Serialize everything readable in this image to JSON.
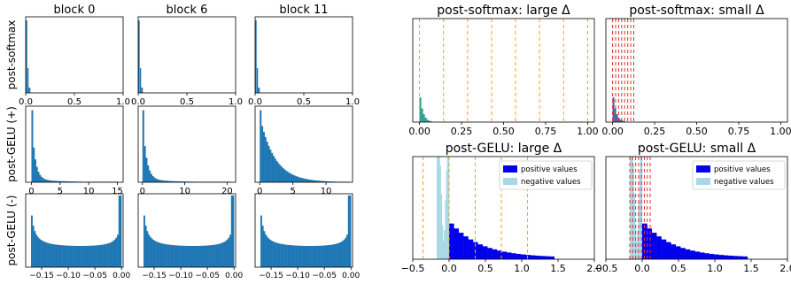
{
  "colors": {
    "hist": "#1f77b4",
    "positive": "#0000ee",
    "negative": "#a8d8e6",
    "orange_lines": "#ff9f1c",
    "red_lines": "#e03030"
  },
  "chart_data": [
    {
      "id": "grid",
      "type": "bar",
      "column_titles": [
        "block 0",
        "block 6",
        "block 11"
      ],
      "row_labels": [
        "post-softmax",
        "post-GELU (+)",
        "post-GELU (-)"
      ],
      "panels": [
        {
          "row": 0,
          "col": 0,
          "xlim": [
            0,
            1
          ],
          "ticks": [
            0,
            0.5,
            1
          ],
          "tick_labels": [
            "0.0",
            "0.5",
            "1.0"
          ],
          "shape": "spike",
          "spike_at": 0.01
        },
        {
          "row": 0,
          "col": 1,
          "xlim": [
            0,
            1
          ],
          "ticks": [
            0,
            0.5,
            1
          ],
          "tick_labels": [
            "0.0",
            "0.5",
            "1.0"
          ],
          "shape": "spike",
          "spike_at": 0.01
        },
        {
          "row": 0,
          "col": 2,
          "xlim": [
            0,
            1
          ],
          "ticks": [
            0,
            0.5,
            1
          ],
          "tick_labels": [
            "0.0",
            "0.5",
            "1.0"
          ],
          "shape": "spike",
          "spike_at": 0.01
        },
        {
          "row": 1,
          "col": 0,
          "xlim": [
            -1,
            16
          ],
          "ticks": [
            0,
            5,
            10,
            15
          ],
          "tick_labels": [
            "0",
            "5",
            "10",
            "15"
          ],
          "shape": "decay",
          "decay_scale": 0.6,
          "data_max": 15
        },
        {
          "row": 1,
          "col": 1,
          "xlim": [
            -1,
            22
          ],
          "ticks": [
            0,
            10,
            20
          ],
          "tick_labels": [
            "0",
            "10",
            "20"
          ],
          "shape": "decay",
          "decay_scale": 0.9,
          "data_max": 21
        },
        {
          "row": 1,
          "col": 2,
          "xlim": [
            -0.7,
            14
          ],
          "ticks": [
            0,
            5,
            10
          ],
          "tick_labels": [
            "0",
            "5",
            "10"
          ],
          "shape": "decay",
          "decay_scale": 2.2,
          "data_max": 13.5
        },
        {
          "row": 2,
          "col": 0,
          "xlim": [
            -0.18,
            0.003
          ],
          "ticks": [
            -0.15,
            -0.1,
            -0.05,
            0
          ],
          "tick_labels": [
            "−0.15",
            "−0.10",
            "−0.05",
            "0.00"
          ],
          "shape": "u",
          "data_min": -0.17
        },
        {
          "row": 2,
          "col": 1,
          "xlim": [
            -0.18,
            0.003
          ],
          "ticks": [
            -0.15,
            -0.1,
            -0.05,
            0
          ],
          "tick_labels": [
            "−0.15",
            "−0.10",
            "−0.05",
            "0.00"
          ],
          "shape": "u",
          "data_min": -0.17
        },
        {
          "row": 2,
          "col": 2,
          "xlim": [
            -0.18,
            0.003
          ],
          "ticks": [
            -0.15,
            -0.1,
            -0.05,
            0
          ],
          "tick_labels": [
            "−0.15",
            "−0.10",
            "−0.05",
            "0.00"
          ],
          "shape": "u",
          "data_min": -0.17
        }
      ]
    },
    {
      "id": "softmax-large",
      "type": "bar",
      "title": "post-softmax: large Δ",
      "xlim": [
        -0.04,
        1.04
      ],
      "ticks": [
        0,
        0.25,
        0.5,
        0.75,
        1
      ],
      "tick_labels": [
        "0.00",
        "0.25",
        "0.50",
        "0.75",
        "1.00"
      ],
      "quant_lines": [
        0,
        0.143,
        0.286,
        0.429,
        0.571,
        0.714,
        0.857,
        1.0
      ],
      "line_color": "orange"
    },
    {
      "id": "softmax-small",
      "type": "bar",
      "title": "post-softmax: small Δ",
      "xlim": [
        -0.04,
        1.04
      ],
      "ticks": [
        0,
        0.25,
        0.5,
        0.75,
        1
      ],
      "tick_labels": [
        "0.00",
        "0.25",
        "0.50",
        "0.75",
        "1.00"
      ],
      "quant_lines": [
        0,
        0.018,
        0.036,
        0.054,
        0.072,
        0.09,
        0.108,
        0.126
      ],
      "line_color": "red"
    },
    {
      "id": "gelu-large",
      "type": "bar",
      "title": "post-GELU: large Δ",
      "xlim": [
        -0.5,
        2.0
      ],
      "ticks": [
        -0.5,
        0,
        0.5,
        1,
        1.5,
        2
      ],
      "tick_labels": [
        "−0.5",
        "0.0",
        "0.5",
        "1.0",
        "1.5",
        "2.0"
      ],
      "quant_lines": [
        -0.36,
        0,
        0.36,
        0.72,
        1.08
      ],
      "line_color": "orange",
      "legend": [
        "positive values",
        "negative values"
      ]
    },
    {
      "id": "gelu-small",
      "type": "bar",
      "title": "post-GELU: small Δ",
      "xlim": [
        -0.5,
        2.0
      ],
      "ticks": [
        -0.5,
        0,
        0.5,
        1,
        1.5,
        2
      ],
      "tick_labels": [
        "−0.5",
        "0.0",
        "0.5",
        "1.0",
        "1.5",
        "2.0"
      ],
      "quant_lines": [
        -0.17,
        -0.13,
        -0.09,
        -0.05,
        -0.01,
        0.03,
        0.07,
        0.11
      ],
      "line_color": "red",
      "legend": [
        "positive values",
        "negative values"
      ]
    }
  ]
}
